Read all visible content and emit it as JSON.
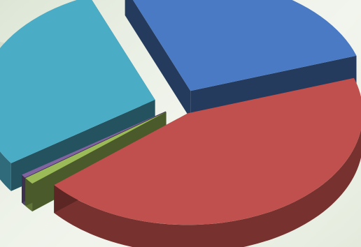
{
  "chart_data": {
    "type": "pie",
    "style": "3d-exploded",
    "title": "",
    "legend": "none",
    "data_labels": false,
    "slices": [
      {
        "value": 26,
        "color": "#4a7ac4"
      },
      {
        "value": 44,
        "color": "#c0504d"
      },
      {
        "value": 1,
        "color": "#9bbb59"
      },
      {
        "value": 0.5,
        "color": "#8064a2"
      },
      {
        "value": 28.5,
        "color": "#4bacc6"
      }
    ]
  }
}
